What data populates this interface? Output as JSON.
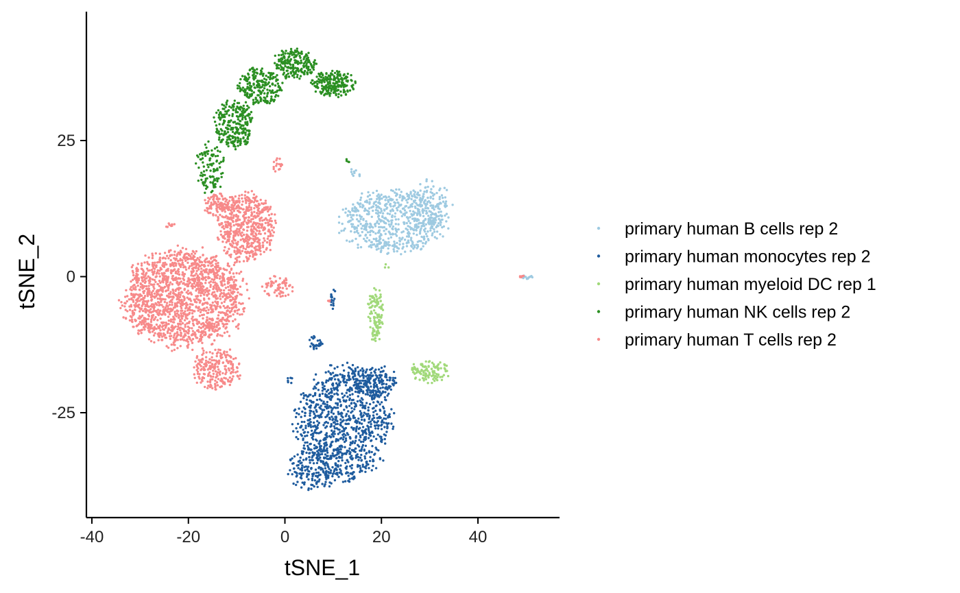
{
  "chart_data": {
    "type": "scatter",
    "title": "",
    "xlabel": "tSNE_1",
    "ylabel": "tSNE_2",
    "xlim": [
      -41,
      57
    ],
    "ylim": [
      -44,
      48
    ],
    "xticks": [
      -40,
      -20,
      0,
      20,
      40
    ],
    "yticks": [
      -25,
      0,
      25
    ],
    "xtick_labels": [
      "-40",
      "-20",
      "0",
      "20",
      "40"
    ],
    "ytick_labels": [
      "-25",
      "0",
      "25"
    ],
    "grid": false,
    "legend": "right",
    "series": [
      {
        "name": "primary human B cells rep 2",
        "color": "#9ecae1",
        "clusters": [
          {
            "cx": 22.5,
            "cy": 10,
            "rx": 12,
            "ry": 6.5,
            "n": 620
          },
          {
            "cx": 30,
            "cy": 13,
            "rx": 5,
            "ry": 5,
            "n": 120
          },
          {
            "cx": 14.5,
            "cy": 19,
            "rx": 1.4,
            "ry": 1,
            "n": 10
          },
          {
            "cx": 50.5,
            "cy": -0.2,
            "rx": 1.6,
            "ry": 0.5,
            "n": 14
          }
        ]
      },
      {
        "name": "primary human monocytes rep 2",
        "color": "#1f5c9e",
        "clusters": [
          {
            "cx": 12,
            "cy": -27,
            "rx": 11,
            "ry": 11.5,
            "n": 950
          },
          {
            "cx": 6,
            "cy": -35,
            "rx": 6,
            "ry": 4.5,
            "n": 180
          },
          {
            "cx": 18,
            "cy": -19,
            "rx": 6,
            "ry": 3,
            "n": 150
          },
          {
            "cx": 6,
            "cy": -12,
            "rx": 2.2,
            "ry": 1.4,
            "n": 30
          },
          {
            "cx": 10,
            "cy": -4,
            "rx": 0.5,
            "ry": 2.6,
            "n": 16
          },
          {
            "cx": 1,
            "cy": -19,
            "rx": 0.8,
            "ry": 0.8,
            "n": 6
          }
        ]
      },
      {
        "name": "primary human myeloid DC rep 1",
        "color": "#a1d97a",
        "clusters": [
          {
            "cx": 18.8,
            "cy": -7,
            "rx": 1.8,
            "ry": 5.5,
            "n": 120
          },
          {
            "cx": 30,
            "cy": -17.5,
            "rx": 4.5,
            "ry": 2.2,
            "n": 110
          },
          {
            "cx": 21,
            "cy": 1.8,
            "rx": 0.6,
            "ry": 0.6,
            "n": 3
          }
        ]
      },
      {
        "name": "primary human NK cells rep 2",
        "color": "#2b8f22",
        "clusters": [
          {
            "cx": -15.5,
            "cy": 20,
            "rx": 3.2,
            "ry": 5,
            "n": 110
          },
          {
            "cx": -10.5,
            "cy": 28,
            "rx": 4.5,
            "ry": 5,
            "n": 260
          },
          {
            "cx": -5,
            "cy": 35,
            "rx": 5,
            "ry": 4,
            "n": 220
          },
          {
            "cx": 2,
            "cy": 39,
            "rx": 5,
            "ry": 3,
            "n": 200
          },
          {
            "cx": 10,
            "cy": 35.5,
            "rx": 5,
            "ry": 2.6,
            "n": 210
          },
          {
            "cx": 13,
            "cy": 21.2,
            "rx": 0.5,
            "ry": 0.6,
            "n": 4
          }
        ]
      },
      {
        "name": "primary human T cells rep 2",
        "color": "#f78a8a",
        "clusters": [
          {
            "cx": -21,
            "cy": -4,
            "rx": 14,
            "ry": 10,
            "n": 1650
          },
          {
            "cx": -14,
            "cy": -17,
            "rx": 5.5,
            "ry": 4.2,
            "n": 220
          },
          {
            "cx": -8,
            "cy": 9,
            "rx": 6.5,
            "ry": 7,
            "n": 560
          },
          {
            "cx": -14,
            "cy": 13,
            "rx": 3,
            "ry": 2.5,
            "n": 90
          },
          {
            "cx": -1.5,
            "cy": -2,
            "rx": 3.5,
            "ry": 2.2,
            "n": 65
          },
          {
            "cx": -1.5,
            "cy": 20.5,
            "rx": 1.2,
            "ry": 1.6,
            "n": 16
          },
          {
            "cx": -24,
            "cy": 9.5,
            "rx": 1.2,
            "ry": 0.5,
            "n": 8
          },
          {
            "cx": 9,
            "cy": -4.6,
            "rx": 0.6,
            "ry": 0.3,
            "n": 4
          },
          {
            "cx": 48.8,
            "cy": 0.1,
            "rx": 0.8,
            "ry": 0.3,
            "n": 6
          }
        ]
      }
    ]
  }
}
